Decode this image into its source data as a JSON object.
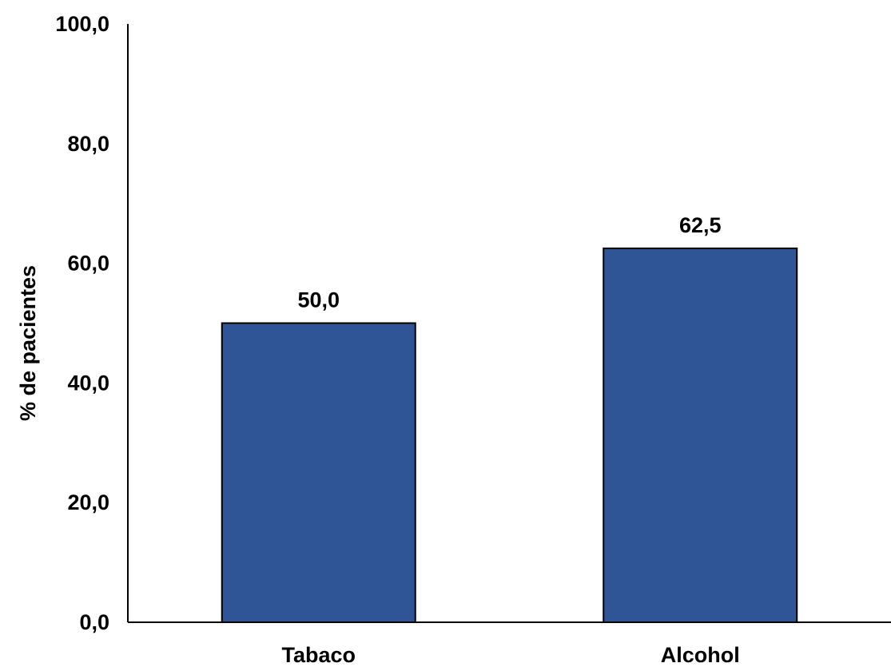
{
  "chart_data": {
    "type": "bar",
    "categories": [
      "Tabaco",
      "Alcohol"
    ],
    "values": [
      50.0,
      62.5
    ],
    "value_labels": [
      "50,0",
      "62,5"
    ],
    "title": "",
    "xlabel": "",
    "ylabel": "% de pacientes",
    "ylim": [
      0,
      100
    ],
    "yticks": [
      0,
      20,
      40,
      60,
      80,
      100
    ],
    "ytick_labels": [
      "0,0",
      "20,0",
      "40,0",
      "60,0",
      "80,0",
      "100,0"
    ],
    "grid": false,
    "legend": "none",
    "bar_color": "#2F5597",
    "bar_edge_color": "#000000"
  }
}
